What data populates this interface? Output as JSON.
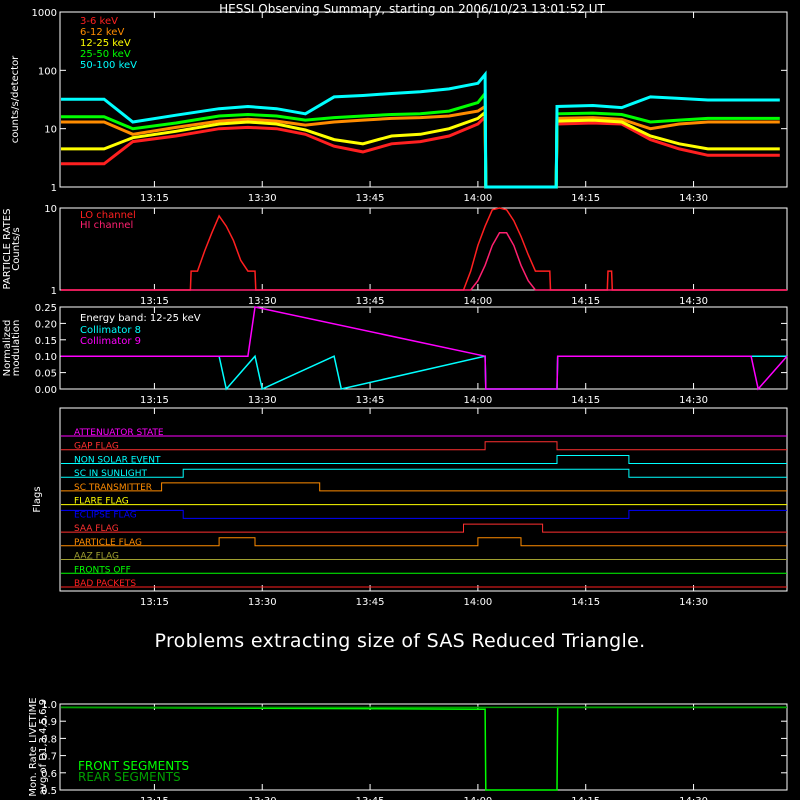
{
  "title": "HESSI Observing Summary, starting on 2006/10/23 13:01:52 UT",
  "message": "Problems extracting size of SAS Reduced Triangle.",
  "time_ticks": [
    "13:15",
    "13:30",
    "13:45",
    "14:00",
    "14:15",
    "14:30"
  ],
  "chart_data": [
    {
      "id": "count-rates",
      "type": "line",
      "ylabel": "counts/s/detector",
      "yscale": "log",
      "ylim": [
        1,
        1000
      ],
      "yticks": [
        "1",
        "10",
        "100",
        "1000"
      ],
      "xlim": [
        "13:01:52",
        "14:43:00"
      ],
      "series": [
        {
          "name": "3-6 keV",
          "color": "#ff2020",
          "x": [
            "13:02",
            "13:06",
            "13:08",
            "13:12",
            "13:18",
            "13:24",
            "13:28",
            "13:32",
            "13:36",
            "13:40",
            "13:44",
            "13:48",
            "13:52",
            "13:56",
            "14:00",
            "14:01",
            "14:01.1",
            "14:10.9",
            "14:11",
            "14:16",
            "14:20",
            "14:24",
            "14:28",
            "14:32",
            "14:36",
            "14:42"
          ],
          "y": [
            2.5,
            2.5,
            2.5,
            6,
            7.5,
            10,
            10.5,
            10,
            8,
            5,
            4,
            5.5,
            6,
            7.5,
            12,
            16,
            0.5,
            0.5,
            12,
            12.5,
            12,
            6.5,
            4.5,
            3.5,
            3.5,
            3.5
          ]
        },
        {
          "name": "6-12 keV",
          "color": "#ff8c00",
          "x": [
            "13:02",
            "13:06",
            "13:08",
            "13:12",
            "13:18",
            "13:24",
            "13:28",
            "13:32",
            "13:36",
            "13:40",
            "13:44",
            "13:48",
            "13:52",
            "13:56",
            "14:00",
            "14:01",
            "14:01.1",
            "14:10.9",
            "14:11",
            "14:16",
            "14:20",
            "14:24",
            "14:28",
            "14:32",
            "14:36",
            "14:42"
          ],
          "y": [
            13,
            13,
            13,
            8,
            10.5,
            13.5,
            14.5,
            13.5,
            11.5,
            13,
            14,
            15,
            15.5,
            16.5,
            20,
            24,
            0.5,
            0.5,
            15,
            15.5,
            14.5,
            10,
            12,
            13,
            13,
            13
          ]
        },
        {
          "name": "12-25 keV",
          "color": "#ffff00",
          "x": [
            "13:02",
            "13:06",
            "13:08",
            "13:12",
            "13:18",
            "13:24",
            "13:28",
            "13:32",
            "13:36",
            "13:40",
            "13:44",
            "13:48",
            "13:52",
            "13:56",
            "14:00",
            "14:01",
            "14:01.1",
            "14:10.9",
            "14:11",
            "14:16",
            "14:20",
            "14:24",
            "14:28",
            "14:32",
            "14:36",
            "14:42"
          ],
          "y": [
            4.5,
            4.5,
            4.5,
            7,
            9,
            12,
            13,
            12,
            9.5,
            6.5,
            5.5,
            7.5,
            8,
            10,
            15,
            19,
            0.5,
            0.5,
            13.5,
            14,
            13,
            7.5,
            5.5,
            4.5,
            4.5,
            4.5
          ]
        },
        {
          "name": "25-50 keV",
          "color": "#00ff00",
          "x": [
            "13:02",
            "13:06",
            "13:08",
            "13:12",
            "13:18",
            "13:24",
            "13:28",
            "13:32",
            "13:36",
            "13:40",
            "13:44",
            "13:48",
            "13:52",
            "13:56",
            "14:00",
            "14:01",
            "14:01.1",
            "14:10.9",
            "14:11",
            "14:16",
            "14:20",
            "14:24",
            "14:28",
            "14:32",
            "14:36",
            "14:42"
          ],
          "y": [
            16,
            16,
            16,
            10,
            12.5,
            16.5,
            17.5,
            16.5,
            14,
            15.5,
            16.5,
            17.5,
            18,
            20,
            28,
            40,
            0.5,
            0.5,
            18,
            18.5,
            17.5,
            13,
            14,
            15,
            15,
            15
          ]
        },
        {
          "name": "50-100 keV",
          "color": "#00ffff",
          "x": [
            "13:02",
            "13:06",
            "13:08",
            "13:12",
            "13:18",
            "13:24",
            "13:28",
            "13:32",
            "13:36",
            "13:40",
            "13:44",
            "13:48",
            "13:52",
            "13:56",
            "14:00",
            "14:01",
            "14:01.1",
            "14:10.9",
            "14:11",
            "14:16",
            "14:20",
            "14:24",
            "14:28",
            "14:32",
            "14:36",
            "14:42"
          ],
          "y": [
            32,
            32,
            32,
            13,
            17,
            22,
            24,
            22,
            18,
            35,
            37,
            40,
            43,
            48,
            60,
            85,
            0.5,
            0.5,
            24,
            25,
            23,
            35,
            33,
            31,
            31,
            31
          ]
        }
      ]
    },
    {
      "id": "particle-rates",
      "type": "line",
      "ylabel": "PARTICLE RATES",
      "ylabel2": "Counts/s",
      "yscale": "log",
      "ylim": [
        1,
        10
      ],
      "yticks": [
        "1",
        "10"
      ],
      "series": [
        {
          "name": "LO channel",
          "color": "#ff2020",
          "x": [
            "13:02",
            "13:20",
            "13:20.1",
            "13:21",
            "13:22",
            "13:23",
            "13:24",
            "13:25",
            "13:26",
            "13:27",
            "13:28",
            "13:29",
            "13:29.1",
            "13:58",
            "13:59",
            "14:00",
            "14:01",
            "14:02",
            "14:03",
            "14:04",
            "14:05",
            "14:06",
            "14:07",
            "14:08",
            "14:09",
            "14:10",
            "14:10.1",
            "14:18",
            "14:18.1",
            "14:18.6",
            "14:18.7",
            "14:43"
          ],
          "y": [
            1,
            1,
            1.7,
            1.7,
            3,
            5,
            8,
            6,
            4,
            2.3,
            1.7,
            1.7,
            1,
            1,
            1.7,
            3.5,
            6,
            9.5,
            10,
            9.5,
            7,
            4.5,
            2.7,
            1.7,
            1.7,
            1.7,
            1,
            1,
            1.7,
            1.7,
            1,
            1
          ]
        },
        {
          "name": "HI channel",
          "color": "#ff2070",
          "x": [
            "13:02",
            "13:58",
            "13:59",
            "14:00",
            "14:01",
            "14:02",
            "14:03",
            "14:04",
            "14:05",
            "14:06",
            "14:07",
            "14:08",
            "14:09",
            "14:43"
          ],
          "y": [
            1,
            1,
            1,
            1.3,
            2,
            3.5,
            5,
            5,
            3.5,
            2,
            1.3,
            1,
            1,
            1
          ]
        }
      ]
    },
    {
      "id": "modulation",
      "type": "line",
      "ylabel": "Normalized",
      "ylabel2": "modulation",
      "ylim": [
        0,
        0.25
      ],
      "yticks": [
        "0.00",
        "0.05",
        "0.10",
        "0.15",
        "0.20",
        "0.25"
      ],
      "annotation": "Energy band: 12-25 keV",
      "series": [
        {
          "name": "Collimator 8",
          "color": "#00ffff",
          "x": [
            "13:02",
            "13:24",
            "13:25",
            "13:29",
            "13:30",
            "13:40",
            "13:41",
            "14:01",
            "14:01.1",
            "14:11",
            "14:11.1",
            "14:43"
          ],
          "y": [
            0.1,
            0.1,
            0.0,
            0.1,
            0.0,
            0.1,
            0.0,
            0.1,
            0.0,
            0.0,
            0.1,
            0.1
          ]
        },
        {
          "name": "Collimator 9",
          "color": "#ff00ff",
          "x": [
            "13:02",
            "13:28",
            "13:29",
            "14:01",
            "14:01.1",
            "14:11",
            "14:11.1",
            "14:38",
            "14:39",
            "14:43"
          ],
          "y": [
            0.1,
            0.1,
            0.25,
            0.1,
            0.0,
            0.0,
            0.1,
            0.1,
            0.0,
            0.1
          ]
        }
      ]
    },
    {
      "id": "flags",
      "type": "line",
      "ylabel": "Flags",
      "series": [
        {
          "name": "ATTENUATOR STATE",
          "color": "#ff00ff",
          "x": [
            "13:02",
            "14:43"
          ],
          "y": [
            0,
            0
          ]
        },
        {
          "name": "GAP FLAG",
          "color": "#ff3030",
          "x": [
            "13:02",
            "14:01",
            "14:01",
            "14:11",
            "14:11",
            "14:43"
          ],
          "y": [
            0,
            0,
            1,
            1,
            0,
            0
          ]
        },
        {
          "name": "NON SOLAR EVENT",
          "color": "#00ffff",
          "x": [
            "13:02",
            "14:11",
            "14:11",
            "14:21",
            "14:21",
            "14:43"
          ],
          "y": [
            0,
            0,
            1,
            1,
            0,
            0
          ]
        },
        {
          "name": "SC IN SUNLIGHT",
          "color": "#00ffff",
          "x": [
            "13:02",
            "13:19",
            "13:19",
            "14:21",
            "14:21",
            "14:43"
          ],
          "y": [
            0,
            0,
            1,
            1,
            0,
            0
          ]
        },
        {
          "name": "SC TRANSMITTER",
          "color": "#ff8c00",
          "x": [
            "13:02",
            "13:16",
            "13:16",
            "13:38",
            "13:38",
            "14:43"
          ],
          "y": [
            0,
            0,
            1,
            1,
            0,
            0
          ]
        },
        {
          "name": "FLARE FLAG",
          "color": "#ffff00",
          "x": [
            "13:02",
            "14:43"
          ],
          "y": [
            0,
            0
          ]
        },
        {
          "name": "ECLIPSE FLAG",
          "color": "#0000ff",
          "x": [
            "13:02",
            "13:19",
            "13:19",
            "14:21",
            "14:21",
            "14:43"
          ],
          "y": [
            1,
            1,
            0,
            0,
            1,
            1
          ]
        },
        {
          "name": "SAA FLAG",
          "color": "#ff3030",
          "x": [
            "13:02",
            "13:58",
            "13:58",
            "14:09",
            "14:09",
            "14:43"
          ],
          "y": [
            0,
            0,
            1,
            1,
            0,
            0
          ]
        },
        {
          "name": "PARTICLE FLAG",
          "color": "#ff8c00",
          "x": [
            "13:02",
            "13:24",
            "13:24",
            "13:29",
            "13:29",
            "14:00",
            "14:00",
            "14:06",
            "14:06",
            "14:43"
          ],
          "y": [
            0,
            0,
            1,
            1,
            0,
            0,
            1,
            1,
            0,
            0
          ]
        },
        {
          "name": "AAZ FLAG",
          "color": "#a0a030",
          "x": [
            "13:02",
            "14:43"
          ],
          "y": [
            0,
            0
          ]
        },
        {
          "name": "FRONTS OFF",
          "color": "#00ff00",
          "x": [
            "13:02",
            "14:43"
          ],
          "y": [
            0,
            0
          ]
        },
        {
          "name": "BAD PACKETS",
          "color": "#ff2020",
          "x": [
            "13:02",
            "14:43"
          ],
          "y": [
            0,
            0
          ]
        }
      ]
    },
    {
      "id": "livetime",
      "type": "line",
      "ylabel": "Mon. Rate LIVETIME",
      "ylabel2": "avg of D1,3,4,5,6,9",
      "ylim": [
        0.5,
        1.0
      ],
      "yticks": [
        "0.5",
        "0.6",
        "0.7",
        "0.8",
        "0.9",
        "1.0"
      ],
      "series": [
        {
          "name": "FRONT SEGMENTS",
          "color": "#00ff00",
          "x": [
            "13:02",
            "14:01",
            "14:01.1",
            "14:11",
            "14:11.1",
            "14:43"
          ],
          "y": [
            0.98,
            0.97,
            0.5,
            0.5,
            0.98,
            0.98
          ]
        },
        {
          "name": "REAR SEGMENTS",
          "color": "#00a000",
          "x": [
            "13:02",
            "14:43"
          ],
          "y": [
            0.98,
            0.98
          ]
        }
      ]
    }
  ]
}
